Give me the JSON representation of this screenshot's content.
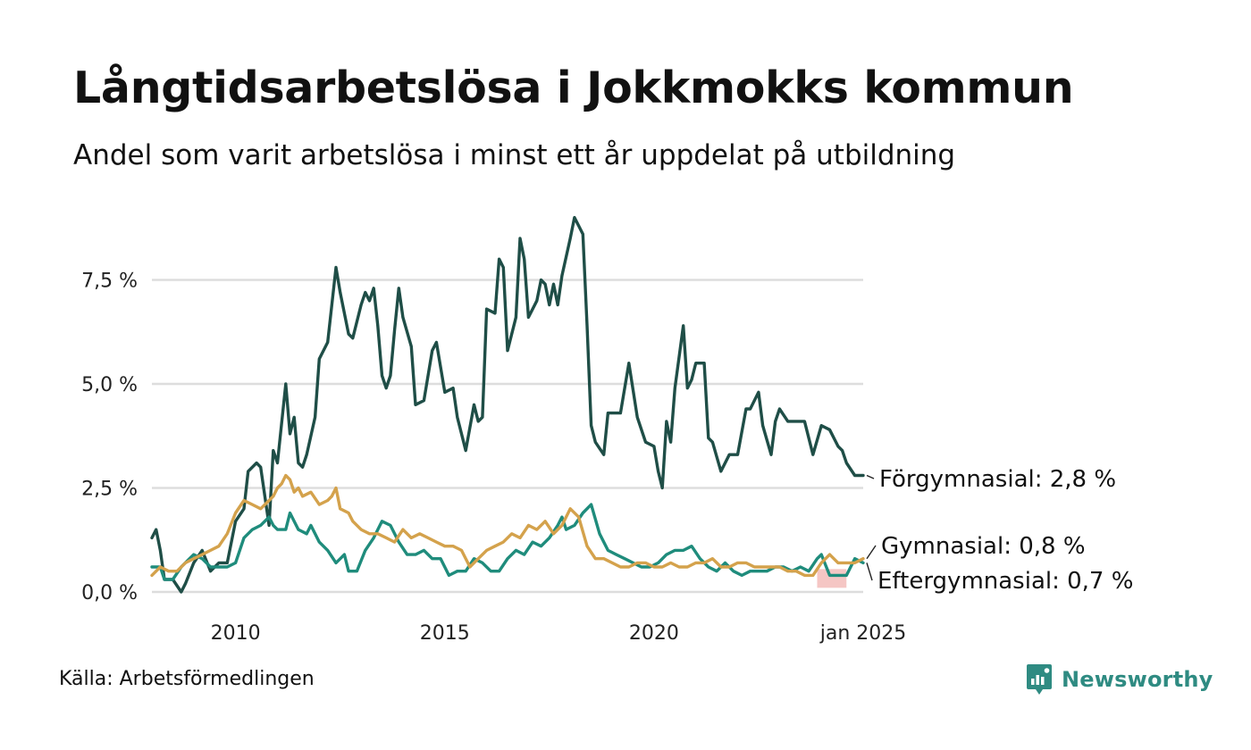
{
  "header": {
    "title": "Långtidsarbetslösa i Jokkmokks kommun",
    "subtitle": "Andel som varit arbetslösa i minst ett år uppdelat på utbildning"
  },
  "footer": {
    "source": "Källa: Arbetsförmedlingen",
    "brand": "Newsworthy"
  },
  "colors": {
    "forgymnasial": "#1f4e47",
    "gymnasial": "#d4a24c",
    "eftergymnasial": "#1f8c7c",
    "grid": "#dddddd",
    "highlight": "#f2b8b5",
    "brand": "#2f8b82"
  },
  "chart_data": {
    "type": "line",
    "title": "Långtidsarbetslösa i Jokkmokks kommun",
    "subtitle": "Andel som varit arbetslösa i minst ett år uppdelat på utbildning",
    "xlabel": "",
    "ylabel": "",
    "xlim": [
      2008.0,
      2025.0
    ],
    "ylim": [
      0,
      9.2
    ],
    "y_ticks": [
      0,
      2.5,
      5.0,
      7.5
    ],
    "y_tick_labels": [
      "0,0 %",
      "2,5 %",
      "5,0 %",
      "7,5 %"
    ],
    "x_ticks": [
      2010,
      2015,
      2020,
      2025
    ],
    "x_tick_labels": [
      "2010",
      "2015",
      "2020",
      "jan 2025"
    ],
    "grid": true,
    "highlight_range": [
      2023.9,
      2024.6
    ],
    "series": [
      {
        "name": "Förgymnasial",
        "label": "Förgymnasial: 2,8 %",
        "x": [
          2008.0,
          2008.1,
          2008.2,
          2008.3,
          2008.5,
          2008.7,
          2008.8,
          2009.0,
          2009.2,
          2009.4,
          2009.6,
          2009.8,
          2010.0,
          2010.2,
          2010.3,
          2010.5,
          2010.6,
          2010.8,
          2010.9,
          2011.0,
          2011.2,
          2011.3,
          2011.4,
          2011.5,
          2011.6,
          2011.7,
          2011.9,
          2012.0,
          2012.2,
          2012.4,
          2012.5,
          2012.7,
          2012.8,
          2013.0,
          2013.1,
          2013.2,
          2013.3,
          2013.4,
          2013.5,
          2013.6,
          2013.7,
          2013.8,
          2013.9,
          2014.0,
          2014.2,
          2014.3,
          2014.5,
          2014.7,
          2014.8,
          2015.0,
          2015.2,
          2015.3,
          2015.5,
          2015.7,
          2015.8,
          2015.9,
          2016.0,
          2016.2,
          2016.3,
          2016.4,
          2016.5,
          2016.7,
          2016.8,
          2016.9,
          2017.0,
          2017.2,
          2017.3,
          2017.4,
          2017.5,
          2017.6,
          2017.7,
          2017.8,
          2018.0,
          2018.1,
          2018.2,
          2018.3,
          2018.4,
          2018.5,
          2018.6,
          2018.8,
          2018.9,
          2019.0,
          2019.2,
          2019.4,
          2019.6,
          2019.8,
          2020.0,
          2020.1,
          2020.2,
          2020.3,
          2020.4,
          2020.5,
          2020.7,
          2020.8,
          2020.9,
          2021.0,
          2021.2,
          2021.3,
          2021.4,
          2021.6,
          2021.8,
          2022.0,
          2022.2,
          2022.3,
          2022.5,
          2022.6,
          2022.8,
          2022.9,
          2023.0,
          2023.2,
          2023.4,
          2023.6,
          2023.7,
          2023.8,
          2024.0,
          2024.2,
          2024.4,
          2024.5,
          2024.6,
          2024.8,
          2025.0
        ],
        "y": [
          1.3,
          1.5,
          1.0,
          0.3,
          0.3,
          0.0,
          0.2,
          0.7,
          1.0,
          0.5,
          0.7,
          0.7,
          1.7,
          2.0,
          2.9,
          3.1,
          3.0,
          1.6,
          3.4,
          3.1,
          5.0,
          3.8,
          4.2,
          3.1,
          3.0,
          3.3,
          4.2,
          5.6,
          6.0,
          7.8,
          7.2,
          6.2,
          6.1,
          6.9,
          7.2,
          7.0,
          7.3,
          6.4,
          5.2,
          4.9,
          5.2,
          6.3,
          7.3,
          6.6,
          5.9,
          4.5,
          4.6,
          5.8,
          6.0,
          4.8,
          4.9,
          4.2,
          3.4,
          4.5,
          4.1,
          4.2,
          6.8,
          6.7,
          8.0,
          7.8,
          5.8,
          6.6,
          8.5,
          8.0,
          6.6,
          7.0,
          7.5,
          7.4,
          6.9,
          7.4,
          6.9,
          7.6,
          8.5,
          9.0,
          8.8,
          8.6,
          6.4,
          4.0,
          3.6,
          3.3,
          4.3,
          4.3,
          4.3,
          5.5,
          4.2,
          3.6,
          3.5,
          2.9,
          2.5,
          4.1,
          3.6,
          4.9,
          6.4,
          4.9,
          5.1,
          5.5,
          5.5,
          3.7,
          3.6,
          2.9,
          3.3,
          3.3,
          4.4,
          4.4,
          4.8,
          4.0,
          3.3,
          4.1,
          4.4,
          4.1,
          4.1,
          4.1,
          3.7,
          3.3,
          4.0,
          3.9,
          3.5,
          3.4,
          3.1,
          2.8,
          2.8
        ]
      },
      {
        "name": "Gymnasial",
        "label": "Gymnasial: 0,8 %",
        "x": [
          2008.0,
          2008.2,
          2008.4,
          2008.6,
          2008.8,
          2009.0,
          2009.2,
          2009.4,
          2009.6,
          2009.8,
          2010.0,
          2010.2,
          2010.4,
          2010.6,
          2010.8,
          2010.9,
          2011.0,
          2011.1,
          2011.2,
          2011.3,
          2011.4,
          2011.5,
          2011.6,
          2011.8,
          2012.0,
          2012.2,
          2012.3,
          2012.4,
          2012.5,
          2012.7,
          2012.8,
          2013.0,
          2013.2,
          2013.4,
          2013.6,
          2013.8,
          2014.0,
          2014.2,
          2014.4,
          2014.6,
          2014.8,
          2015.0,
          2015.2,
          2015.4,
          2015.6,
          2015.8,
          2016.0,
          2016.2,
          2016.4,
          2016.6,
          2016.8,
          2017.0,
          2017.2,
          2017.4,
          2017.6,
          2017.8,
          2018.0,
          2018.2,
          2018.4,
          2018.6,
          2018.8,
          2019.0,
          2019.2,
          2019.4,
          2019.6,
          2019.8,
          2020.0,
          2020.2,
          2020.4,
          2020.6,
          2020.8,
          2021.0,
          2021.2,
          2021.4,
          2021.6,
          2021.8,
          2022.0,
          2022.2,
          2022.4,
          2022.6,
          2022.8,
          2023.0,
          2023.2,
          2023.4,
          2023.6,
          2023.8,
          2024.0,
          2024.2,
          2024.4,
          2024.6,
          2024.8,
          2025.0
        ],
        "y": [
          0.4,
          0.6,
          0.5,
          0.5,
          0.7,
          0.8,
          0.9,
          1.0,
          1.1,
          1.4,
          1.9,
          2.2,
          2.1,
          2.0,
          2.2,
          2.3,
          2.5,
          2.6,
          2.8,
          2.7,
          2.4,
          2.5,
          2.3,
          2.4,
          2.1,
          2.2,
          2.3,
          2.5,
          2.0,
          1.9,
          1.7,
          1.5,
          1.4,
          1.4,
          1.3,
          1.2,
          1.5,
          1.3,
          1.4,
          1.3,
          1.2,
          1.1,
          1.1,
          1.0,
          0.6,
          0.8,
          1.0,
          1.1,
          1.2,
          1.4,
          1.3,
          1.6,
          1.5,
          1.7,
          1.4,
          1.6,
          2.0,
          1.8,
          1.1,
          0.8,
          0.8,
          0.7,
          0.6,
          0.6,
          0.7,
          0.7,
          0.6,
          0.6,
          0.7,
          0.6,
          0.6,
          0.7,
          0.7,
          0.8,
          0.6,
          0.6,
          0.7,
          0.7,
          0.6,
          0.6,
          0.6,
          0.6,
          0.5,
          0.5,
          0.4,
          0.4,
          0.7,
          0.9,
          0.7,
          0.7,
          0.7,
          0.8
        ]
      },
      {
        "name": "Eftergymnasial",
        "label": "Eftergymnasial: 0,7 %",
        "x": [
          2008.0,
          2008.2,
          2008.3,
          2008.5,
          2008.7,
          2008.9,
          2009.0,
          2009.2,
          2009.4,
          2009.6,
          2009.8,
          2010.0,
          2010.2,
          2010.4,
          2010.6,
          2010.8,
          2010.9,
          2011.0,
          2011.2,
          2011.3,
          2011.5,
          2011.7,
          2011.8,
          2012.0,
          2012.2,
          2012.4,
          2012.6,
          2012.7,
          2012.9,
          2013.1,
          2013.3,
          2013.5,
          2013.7,
          2013.9,
          2014.1,
          2014.3,
          2014.5,
          2014.7,
          2014.9,
          2015.1,
          2015.3,
          2015.5,
          2015.7,
          2015.9,
          2016.1,
          2016.3,
          2016.5,
          2016.7,
          2016.9,
          2017.1,
          2017.3,
          2017.5,
          2017.7,
          2017.8,
          2017.9,
          2018.1,
          2018.3,
          2018.5,
          2018.7,
          2018.9,
          2019.1,
          2019.3,
          2019.5,
          2019.7,
          2019.9,
          2020.1,
          2020.3,
          2020.5,
          2020.7,
          2020.9,
          2021.1,
          2021.3,
          2021.5,
          2021.7,
          2021.9,
          2022.1,
          2022.3,
          2022.5,
          2022.7,
          2022.9,
          2023.1,
          2023.3,
          2023.5,
          2023.7,
          2023.9,
          2024.0,
          2024.2,
          2024.4,
          2024.6,
          2024.8,
          2025.0
        ],
        "y": [
          0.6,
          0.6,
          0.3,
          0.3,
          0.6,
          0.8,
          0.9,
          0.8,
          0.6,
          0.6,
          0.6,
          0.7,
          1.3,
          1.5,
          1.6,
          1.8,
          1.6,
          1.5,
          1.5,
          1.9,
          1.5,
          1.4,
          1.6,
          1.2,
          1.0,
          0.7,
          0.9,
          0.5,
          0.5,
          1.0,
          1.3,
          1.7,
          1.6,
          1.2,
          0.9,
          0.9,
          1.0,
          0.8,
          0.8,
          0.4,
          0.5,
          0.5,
          0.8,
          0.7,
          0.5,
          0.5,
          0.8,
          1.0,
          0.9,
          1.2,
          1.1,
          1.3,
          1.6,
          1.8,
          1.5,
          1.6,
          1.9,
          2.1,
          1.4,
          1.0,
          0.9,
          0.8,
          0.7,
          0.6,
          0.6,
          0.7,
          0.9,
          1.0,
          1.0,
          1.1,
          0.8,
          0.6,
          0.5,
          0.7,
          0.5,
          0.4,
          0.5,
          0.5,
          0.5,
          0.6,
          0.6,
          0.5,
          0.6,
          0.5,
          0.8,
          0.9,
          0.4,
          0.4,
          0.4,
          0.8,
          0.7
        ]
      }
    ]
  }
}
